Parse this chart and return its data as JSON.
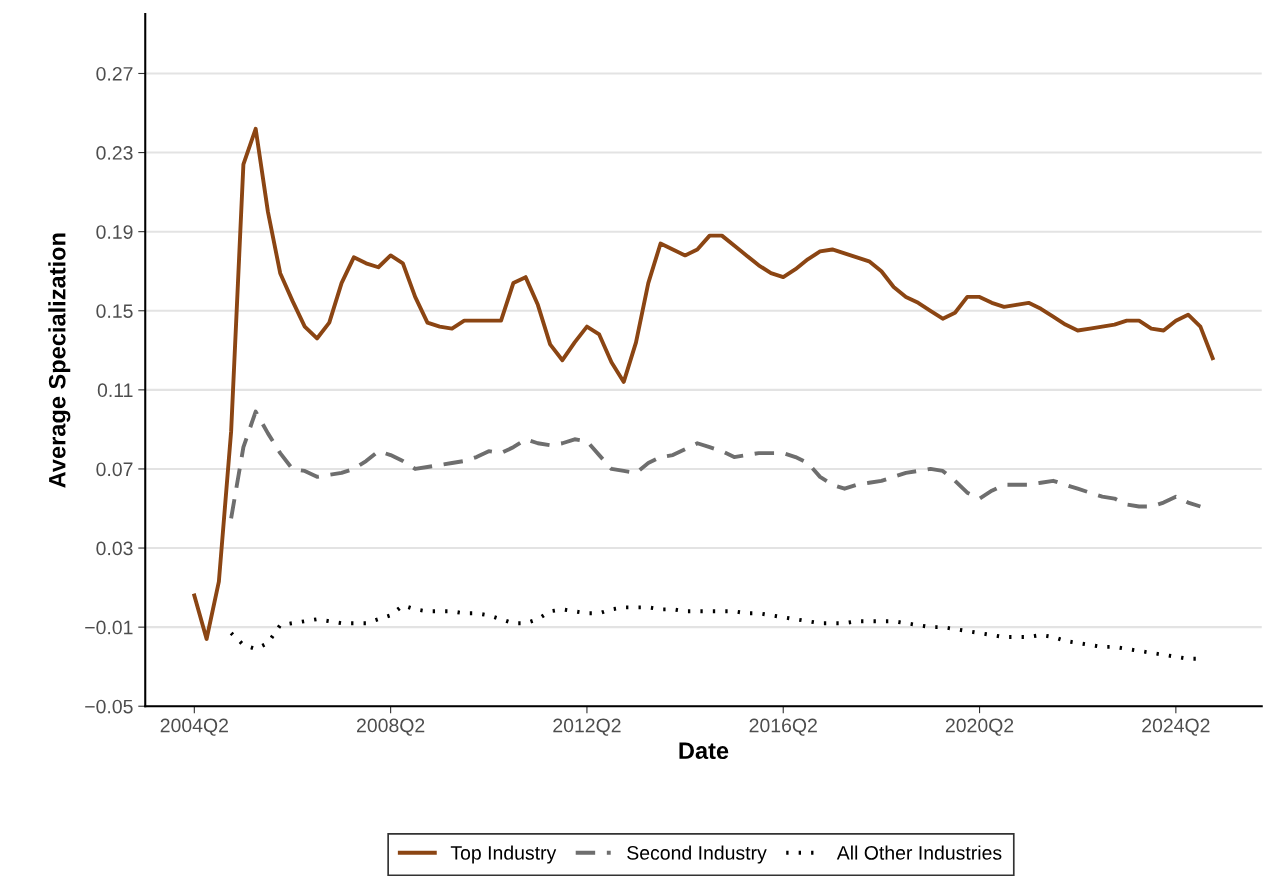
{
  "chart_data": {
    "type": "line",
    "xlabel": "Date",
    "ylabel": "Average Specialization",
    "categories": [
      "2004Q2",
      null,
      null,
      null,
      null,
      null,
      null,
      null,
      null,
      null,
      null,
      null,
      null,
      null,
      null,
      null,
      "2008Q2",
      null,
      null,
      null,
      null,
      null,
      null,
      null,
      null,
      null,
      null,
      null,
      null,
      null,
      null,
      null,
      "2012Q2",
      null,
      null,
      null,
      null,
      null,
      null,
      null,
      null,
      null,
      null,
      null,
      null,
      null,
      null,
      null,
      "2016Q2",
      null,
      null,
      null,
      null,
      null,
      null,
      null,
      null,
      null,
      null,
      null,
      null,
      null,
      null,
      null,
      "2020Q2",
      null,
      null,
      null,
      null,
      null,
      null,
      null,
      null,
      null,
      null,
      null,
      null,
      null,
      null,
      null,
      "2024Q2",
      null,
      null,
      null
    ],
    "ylim": [
      -0.05,
      0.3
    ],
    "yticks": [
      {
        "value": -0.05,
        "label": "−0.05"
      },
      {
        "value": -0.01,
        "label": "−0.01"
      },
      0.03,
      0.07,
      0.11,
      0.15,
      0.19,
      0.23,
      0.27
    ],
    "grid": "y",
    "legend": "bottom",
    "series": [
      {
        "name": "Top Industry",
        "color": "#8b4513",
        "line_style": "solid",
        "values": [
          0.006,
          -0.016,
          0.013,
          0.089,
          0.224,
          0.242,
          0.2,
          0.169,
          0.155,
          0.142,
          0.136,
          0.144,
          0.164,
          0.177,
          0.174,
          0.172,
          0.178,
          0.174,
          0.157,
          0.144,
          0.142,
          0.141,
          0.145,
          0.145,
          0.145,
          0.145,
          0.164,
          0.167,
          0.153,
          0.133,
          0.125,
          0.134,
          0.142,
          0.138,
          0.124,
          0.114,
          0.134,
          0.164,
          0.184,
          0.181,
          0.178,
          0.181,
          0.188,
          0.188,
          0.183,
          0.178,
          0.173,
          0.169,
          0.167,
          0.171,
          0.176,
          0.18,
          0.181,
          0.179,
          0.177,
          0.175,
          0.17,
          0.162,
          0.157,
          0.154,
          0.15,
          0.146,
          0.149,
          0.157,
          0.157,
          0.154,
          0.152,
          0.153,
          0.154,
          0.151,
          0.147,
          0.143,
          0.14,
          0.141,
          0.142,
          0.143,
          0.145,
          0.145,
          0.141,
          0.14,
          0.145,
          0.148,
          0.142,
          0.126
        ]
      },
      {
        "name": "Second Industry",
        "color": "#6e6e6e",
        "line_style": "dashed",
        "values": [
          null,
          null,
          null,
          0.045,
          0.081,
          0.099,
          0.088,
          0.078,
          0.07,
          0.069,
          0.066,
          0.067,
          0.068,
          0.07,
          0.074,
          0.079,
          0.077,
          0.074,
          0.07,
          0.071,
          0.072,
          0.073,
          0.074,
          0.076,
          0.079,
          0.078,
          0.081,
          0.085,
          0.083,
          0.082,
          0.083,
          0.085,
          0.084,
          0.077,
          0.07,
          0.069,
          0.068,
          0.073,
          0.076,
          0.077,
          0.08,
          0.083,
          0.081,
          0.079,
          0.076,
          0.077,
          0.078,
          0.078,
          0.078,
          0.076,
          0.073,
          0.066,
          0.062,
          0.06,
          0.062,
          0.063,
          0.064,
          0.066,
          0.068,
          0.069,
          0.07,
          0.069,
          0.064,
          0.058,
          0.055,
          0.059,
          0.062,
          0.062,
          0.062,
          0.063,
          0.064,
          0.062,
          0.06,
          0.058,
          0.056,
          0.055,
          0.052,
          0.051,
          0.051,
          0.053,
          0.056,
          0.053,
          0.051,
          null
        ]
      },
      {
        "name": "All Other Industries",
        "color": "#000000",
        "line_style": "dotted",
        "values": [
          null,
          null,
          null,
          -0.013,
          -0.019,
          -0.021,
          -0.018,
          -0.009,
          -0.008,
          -0.007,
          -0.006,
          -0.007,
          -0.008,
          -0.008,
          -0.008,
          -0.006,
          -0.004,
          0.001,
          -0.001,
          -0.002,
          -0.002,
          -0.002,
          -0.003,
          -0.003,
          -0.004,
          -0.006,
          -0.008,
          -0.008,
          -0.006,
          -0.002,
          -0.001,
          -0.002,
          -0.003,
          -0.003,
          -0.001,
          0.0,
          0.0,
          0.0,
          -0.001,
          -0.001,
          -0.002,
          -0.002,
          -0.002,
          -0.002,
          -0.002,
          -0.003,
          -0.003,
          -0.004,
          -0.005,
          -0.006,
          -0.007,
          -0.008,
          -0.008,
          -0.008,
          -0.007,
          -0.007,
          -0.007,
          -0.007,
          -0.008,
          -0.009,
          -0.01,
          -0.01,
          -0.011,
          -0.012,
          -0.013,
          -0.014,
          -0.015,
          -0.015,
          -0.015,
          -0.014,
          -0.015,
          -0.017,
          -0.018,
          -0.019,
          -0.02,
          -0.02,
          -0.021,
          -0.022,
          -0.023,
          -0.024,
          -0.025,
          -0.026,
          -0.026,
          null
        ]
      }
    ]
  }
}
